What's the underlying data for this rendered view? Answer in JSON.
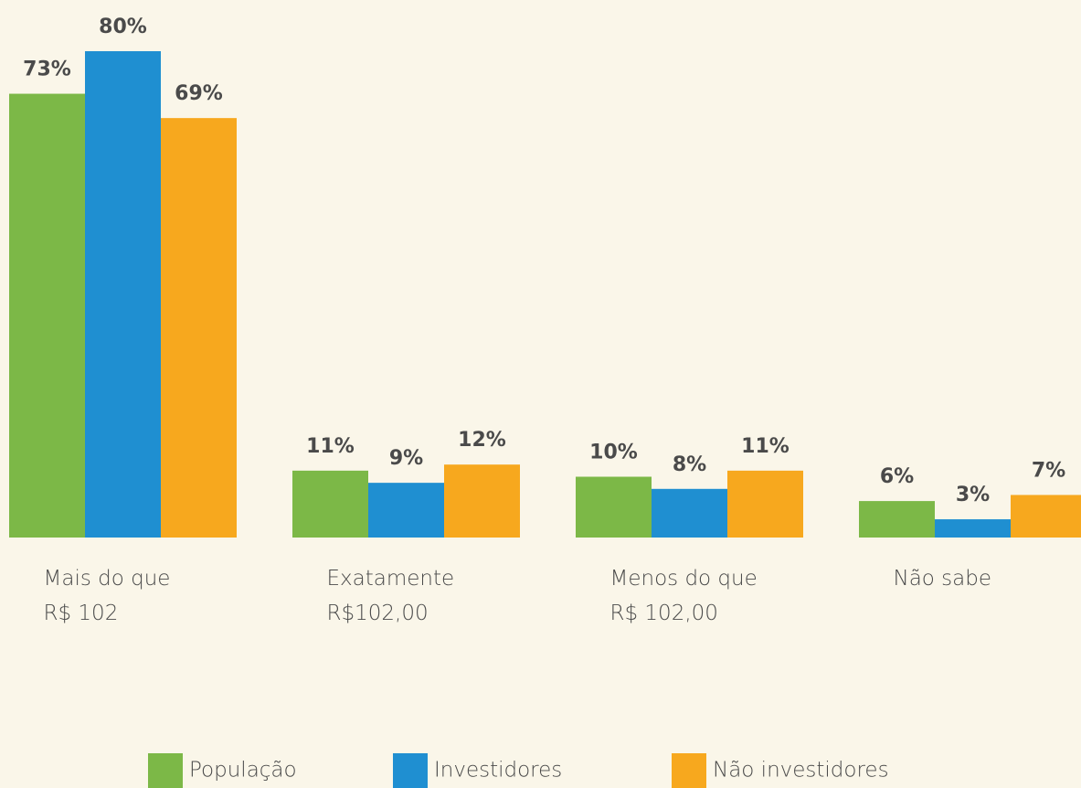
{
  "chart_data": {
    "type": "bar",
    "categories": [
      "Mais do que R$ 102",
      "Exatamente R$102,00",
      "Menos do que R$ 102,00",
      "Não sabe"
    ],
    "series": [
      {
        "name": "População",
        "color": "#7cb847",
        "values": [
          73,
          11,
          10,
          6
        ],
        "value_labels": [
          "73%",
          "11%",
          "10%",
          "6%"
        ]
      },
      {
        "name": "Investidores",
        "color": "#1f8fd1",
        "values": [
          80,
          9,
          8,
          3
        ],
        "value_labels": [
          "80%",
          "9%",
          "8%",
          "3%"
        ]
      },
      {
        "name": "Não investidores",
        "color": "#f7a81e",
        "values": [
          69,
          12,
          11,
          7
        ],
        "value_labels": [
          "69%",
          "12%",
          "11%",
          "7%"
        ]
      }
    ],
    "ylim": [
      0,
      80
    ]
  }
}
